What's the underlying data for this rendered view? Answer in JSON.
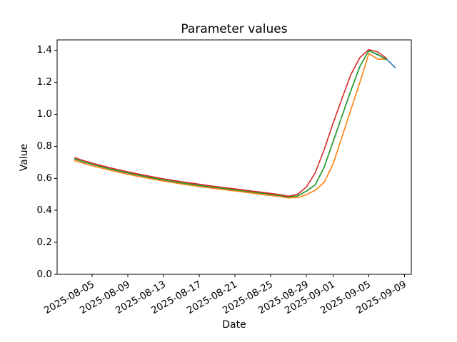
{
  "chart_data": {
    "type": "line",
    "title": "Parameter values",
    "xlabel": "Date",
    "ylabel": "Value",
    "grid": false,
    "legend": false,
    "x_start_date": "2025-08-03",
    "xlim_days": [
      -1.92,
      37.76
    ],
    "ylim": [
      0.0,
      1.4655
    ],
    "y_tick_labels": [
      "0.0",
      "0.2",
      "0.4",
      "0.6",
      "0.8",
      "1.0",
      "1.2",
      "1.4"
    ],
    "x_tick_dates": [
      "2025-08-05",
      "2025-08-09",
      "2025-08-13",
      "2025-08-17",
      "2025-08-21",
      "2025-08-25",
      "2025-08-29",
      "2025-09-01",
      "2025-09-05",
      "2025-09-09"
    ],
    "dates": [
      "2025-08-03",
      "2025-08-04",
      "2025-08-05",
      "2025-08-06",
      "2025-08-07",
      "2025-08-08",
      "2025-08-09",
      "2025-08-10",
      "2025-08-11",
      "2025-08-12",
      "2025-08-13",
      "2025-08-14",
      "2025-08-15",
      "2025-08-16",
      "2025-08-17",
      "2025-08-18",
      "2025-08-19",
      "2025-08-20",
      "2025-08-21",
      "2025-08-22",
      "2025-08-23",
      "2025-08-24",
      "2025-08-25",
      "2025-08-26",
      "2025-08-27",
      "2025-08-28",
      "2025-08-29",
      "2025-08-30",
      "2025-08-31",
      "2025-09-01",
      "2025-09-02",
      "2025-09-03",
      "2025-09-04",
      "2025-09-05",
      "2025-09-06",
      "2025-09-07",
      "2025-09-08"
    ],
    "series": [
      {
        "name": "blue",
        "color": "#1f77b4",
        "values": [
          0.722,
          0.704,
          0.688,
          0.673,
          0.659,
          0.646,
          0.634,
          0.622,
          0.611,
          0.6,
          0.59,
          0.581,
          0.572,
          0.564,
          0.556,
          0.549,
          0.542,
          0.535,
          0.528,
          0.521,
          0.514,
          0.507,
          0.5,
          0.493,
          0.483,
          0.49,
          0.52,
          0.56,
          0.67,
          0.83,
          0.99,
          1.15,
          1.3,
          1.398,
          1.372,
          1.345,
          1.29
        ]
      },
      {
        "name": "orange",
        "color": "#ff7f0e",
        "values": [
          0.712,
          0.695,
          0.679,
          0.665,
          0.651,
          0.638,
          0.626,
          0.614,
          0.603,
          0.593,
          0.583,
          0.574,
          0.565,
          0.557,
          0.549,
          0.542,
          0.535,
          0.528,
          0.521,
          0.514,
          0.507,
          0.5,
          0.493,
          0.487,
          0.478,
          0.48,
          0.498,
          0.525,
          0.575,
          0.69,
          0.86,
          1.03,
          1.2,
          1.38,
          1.345,
          1.345
        ]
      },
      {
        "name": "green",
        "color": "#2ca02c",
        "values": [
          0.722,
          0.704,
          0.688,
          0.673,
          0.659,
          0.646,
          0.634,
          0.622,
          0.611,
          0.6,
          0.59,
          0.581,
          0.572,
          0.564,
          0.556,
          0.549,
          0.542,
          0.535,
          0.528,
          0.521,
          0.514,
          0.507,
          0.5,
          0.493,
          0.483,
          0.49,
          0.52,
          0.56,
          0.67,
          0.83,
          0.99,
          1.15,
          1.3,
          1.398,
          1.375,
          1.34
        ]
      },
      {
        "name": "red",
        "color": "#d62728",
        "values": [
          0.73,
          0.712,
          0.695,
          0.68,
          0.666,
          0.653,
          0.641,
          0.629,
          0.618,
          0.607,
          0.597,
          0.588,
          0.579,
          0.571,
          0.563,
          0.555,
          0.548,
          0.541,
          0.534,
          0.527,
          0.52,
          0.513,
          0.506,
          0.498,
          0.488,
          0.5,
          0.545,
          0.635,
          0.78,
          0.945,
          1.1,
          1.25,
          1.355,
          1.405,
          1.39,
          1.35
        ]
      }
    ]
  }
}
